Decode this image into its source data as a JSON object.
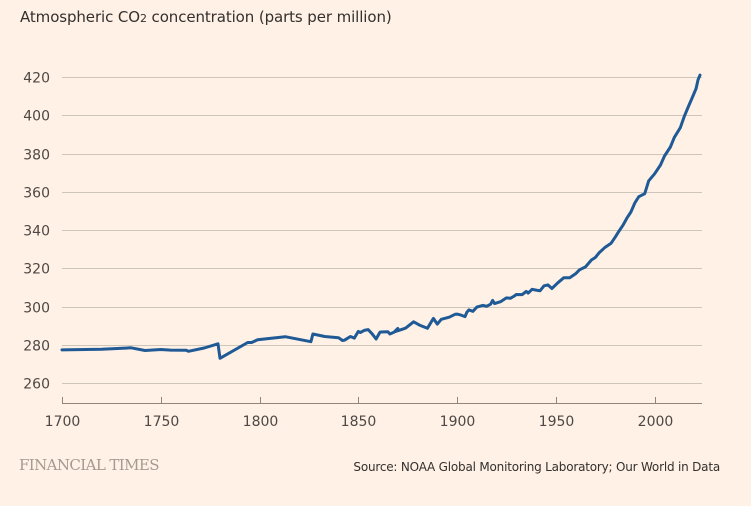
{
  "chart_data": {
    "type": "line",
    "title": "Atmospheric CO2 concentration (parts per million)",
    "title_parts": {
      "pre": "Atmospheric CO",
      "sub": "2",
      "post": " concentration (parts per million)"
    },
    "xlabel": "",
    "ylabel": "",
    "xlim": [
      1700,
      2024
    ],
    "ylim": [
      249.5,
      425
    ],
    "grid": true,
    "legend": "none",
    "y_ticks": [
      260,
      280,
      300,
      320,
      340,
      360,
      380,
      400,
      420
    ],
    "x_ticks": [
      1700,
      1750,
      1800,
      1850,
      1900,
      1950,
      2000
    ],
    "series": [
      {
        "name": "CO2 concentration (ppm)",
        "color": "#1F5A96",
        "x": [
          1700,
          1720,
          1735,
          1742,
          1750,
          1755,
          1763,
          1764,
          1772,
          1779,
          1780,
          1794,
          1796,
          1799,
          1813,
          1826,
          1827,
          1833,
          1840,
          1842,
          1843,
          1846,
          1848,
          1850,
          1851,
          1853,
          1855,
          1857,
          1859,
          1861,
          1865,
          1866,
          1868,
          1870,
          1868.5,
          1872,
          1874,
          1878,
          1881,
          1884,
          1885,
          1888,
          1890,
          1892,
          1896,
          1899,
          1900,
          1902,
          1904,
          1905,
          1906,
          1908,
          1910,
          1913,
          1915,
          1917,
          1918,
          1919,
          1922,
          1925,
          1927,
          1929,
          1930,
          1933,
          1935,
          1936,
          1938,
          1940,
          1942,
          1944,
          1946,
          1948,
          1951,
          1954,
          1957,
          1960,
          1962,
          1965,
          1968,
          1970,
          1972,
          1975,
          1978,
          1980,
          1982,
          1984,
          1986,
          1988,
          1990,
          1992,
          1995,
          1997,
          2000,
          2003,
          2005,
          2008,
          2010,
          2013,
          2015,
          2017,
          2019,
          2021,
          2022,
          2023
        ],
        "values": [
          277.3,
          277.6,
          278.4,
          277.0,
          277.5,
          277.2,
          277.1,
          276.6,
          278.3,
          280.5,
          272.9,
          281.2,
          281.2,
          282.6,
          284.2,
          281.6,
          285.6,
          284.3,
          283.7,
          282.2,
          282.4,
          284.3,
          283.5,
          287.0,
          286.4,
          287.5,
          287.9,
          285.7,
          283.0,
          286.6,
          286.8,
          285.6,
          286.5,
          288.5,
          286.8,
          288.0,
          288.7,
          292.0,
          290.3,
          289.0,
          288.6,
          293.8,
          290.8,
          293.3,
          294.4,
          295.9,
          296.0,
          295.5,
          294.7,
          297.0,
          298.2,
          297.5,
          299.7,
          300.6,
          300.1,
          301.2,
          303.2,
          301.5,
          302.5,
          304.5,
          304.3,
          305.5,
          306.3,
          306.2,
          307.9,
          307.0,
          309.0,
          308.6,
          308.2,
          310.8,
          311.3,
          309.4,
          312.4,
          315.0,
          315.0,
          317.1,
          319.2,
          320.7,
          324.3,
          325.6,
          328.2,
          331.0,
          333.1,
          336.2,
          339.4,
          342.5,
          346.2,
          349.4,
          354.1,
          357.4,
          359.0,
          365.7,
          369.4,
          374.0,
          378.7,
          383.4,
          388.4,
          393.5,
          399.3,
          404.3,
          409.0,
          414.0,
          418.5,
          421.0
        ]
      }
    ],
    "annotations": []
  },
  "footer": {
    "brand": "FINANCIAL TIMES",
    "source": "Source: NOAA Global Monitoring Laboratory; Our World in Data"
  },
  "colors": {
    "background": "#FFF1E5",
    "line": "#1F5A96",
    "grid": "#CEC6B9",
    "axis": "#8F857B"
  }
}
